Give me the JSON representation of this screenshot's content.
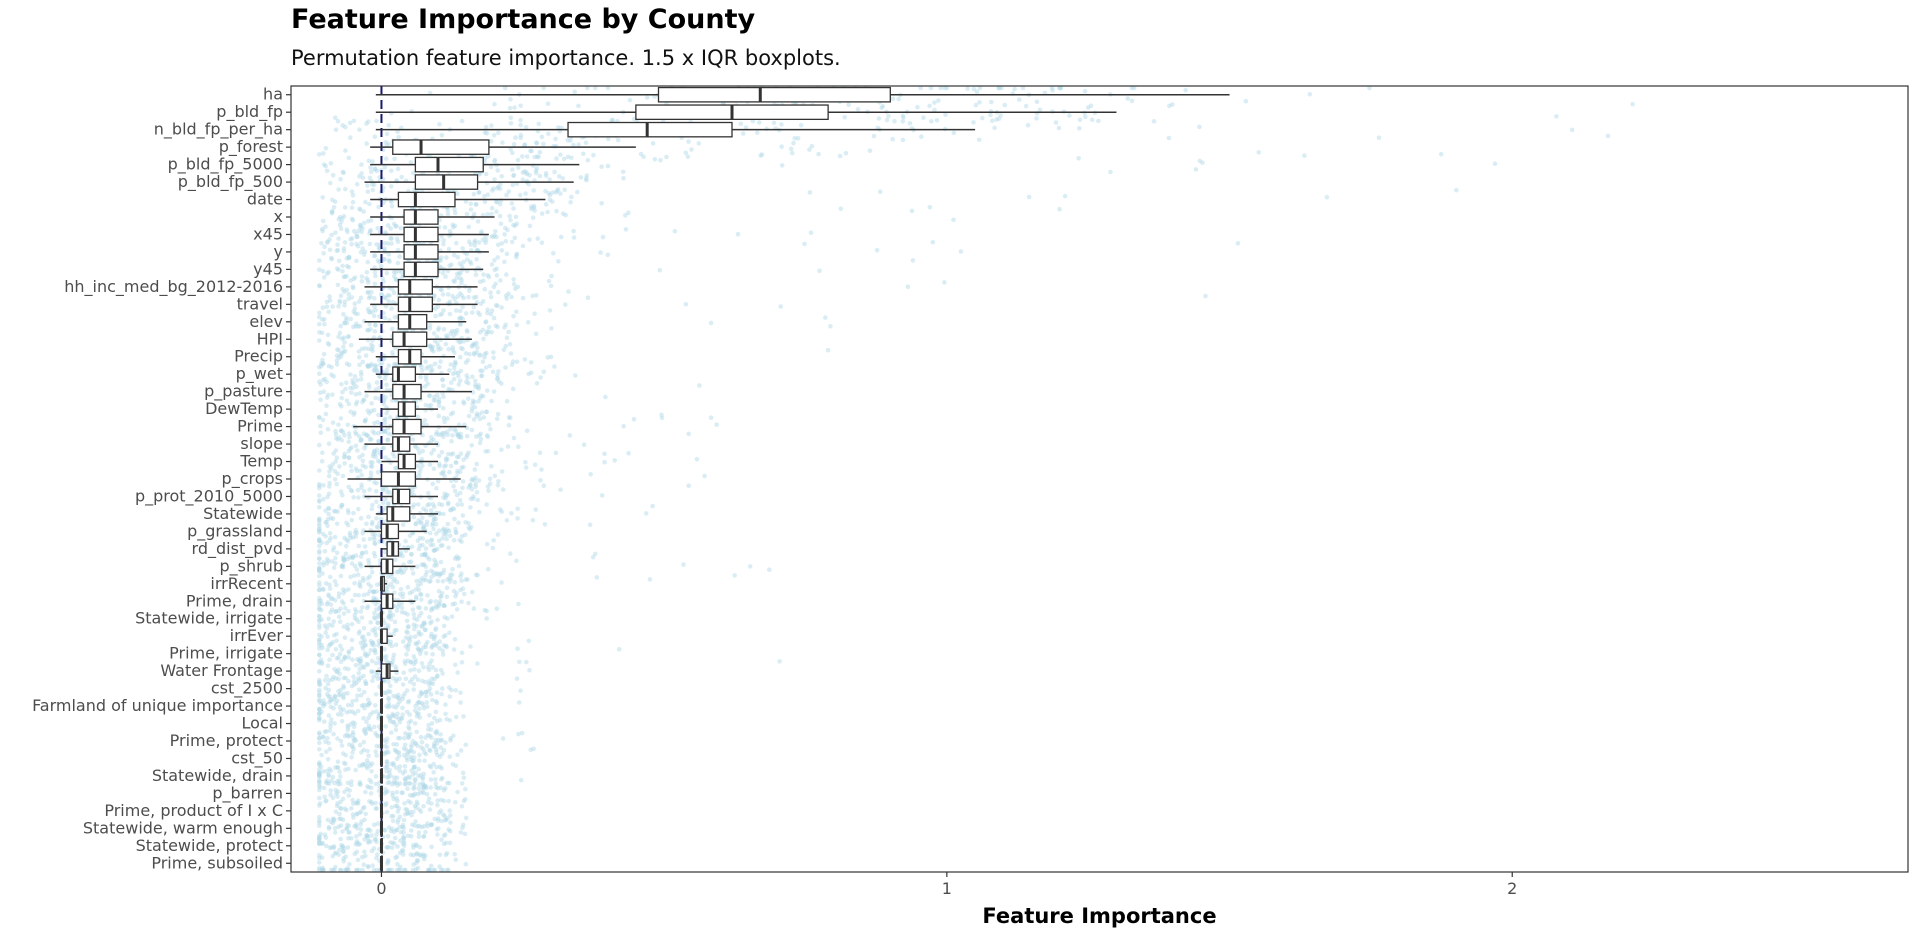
{
  "chart_data": {
    "type": "boxplot",
    "title": "Feature Importance by County",
    "subtitle": "Permutation feature importance. 1.5 x IQR boxplots.",
    "xlabel": "Feature Importance",
    "ylabel": "",
    "xlim": [
      -0.16,
      2.7
    ],
    "xticks": [
      0,
      1,
      2
    ],
    "reference_line": 0,
    "grid": false,
    "point_color": "#add8e6",
    "box_fill": "#ffffff",
    "reference_line_color": "#191970",
    "features": [
      {
        "name": "ha",
        "lower": -0.01,
        "q1": 0.49,
        "median": 0.67,
        "q3": 0.9,
        "upper": 1.5,
        "max": 2.6
      },
      {
        "name": "p_bld_fp",
        "lower": -0.01,
        "q1": 0.45,
        "median": 0.62,
        "q3": 0.79,
        "upper": 1.3,
        "max": 2.2
      },
      {
        "name": "n_bld_fp_per_ha",
        "lower": -0.01,
        "q1": 0.33,
        "median": 0.47,
        "q3": 0.62,
        "upper": 1.05,
        "max": 1.9
      },
      {
        "name": "p_forest",
        "lower": -0.02,
        "q1": 0.02,
        "median": 0.07,
        "q3": 0.19,
        "upper": 0.45,
        "max": 1.5
      },
      {
        "name": "p_bld_fp_5000",
        "lower": -0.02,
        "q1": 0.06,
        "median": 0.1,
        "q3": 0.18,
        "upper": 0.35,
        "max": 2.1
      },
      {
        "name": "p_bld_fp_500",
        "lower": -0.03,
        "q1": 0.06,
        "median": 0.11,
        "q3": 0.17,
        "upper": 0.34,
        "max": 2.1
      },
      {
        "name": "date",
        "lower": -0.02,
        "q1": 0.03,
        "median": 0.06,
        "q3": 0.13,
        "upper": 0.29,
        "max": 1.3
      },
      {
        "name": "x",
        "lower": -0.02,
        "q1": 0.04,
        "median": 0.06,
        "q3": 0.1,
        "upper": 0.2,
        "max": 1.3
      },
      {
        "name": "x45",
        "lower": -0.02,
        "q1": 0.04,
        "median": 0.06,
        "q3": 0.1,
        "upper": 0.19,
        "max": 1.6
      },
      {
        "name": "y",
        "lower": -0.02,
        "q1": 0.04,
        "median": 0.06,
        "q3": 0.1,
        "upper": 0.19,
        "max": 1.2
      },
      {
        "name": "y45",
        "lower": -0.02,
        "q1": 0.04,
        "median": 0.06,
        "q3": 0.1,
        "upper": 0.18,
        "max": 1.1
      },
      {
        "name": "hh_inc_med_bg_2012-2016",
        "lower": -0.03,
        "q1": 0.03,
        "median": 0.05,
        "q3": 0.09,
        "upper": 0.17,
        "max": 1.15
      },
      {
        "name": "travel",
        "lower": -0.02,
        "q1": 0.03,
        "median": 0.05,
        "q3": 0.09,
        "upper": 0.17,
        "max": 0.9
      },
      {
        "name": "elev",
        "lower": -0.03,
        "q1": 0.03,
        "median": 0.05,
        "q3": 0.08,
        "upper": 0.15,
        "max": 1.6
      },
      {
        "name": "HPI",
        "lower": -0.04,
        "q1": 0.02,
        "median": 0.04,
        "q3": 0.08,
        "upper": 0.16,
        "max": 1.3
      },
      {
        "name": "Precip",
        "lower": -0.01,
        "q1": 0.03,
        "median": 0.05,
        "q3": 0.07,
        "upper": 0.13,
        "max": 0.8
      },
      {
        "name": "p_wet",
        "lower": -0.01,
        "q1": 0.02,
        "median": 0.03,
        "q3": 0.06,
        "upper": 0.12,
        "max": 0.85
      },
      {
        "name": "p_pasture",
        "lower": -0.03,
        "q1": 0.02,
        "median": 0.04,
        "q3": 0.07,
        "upper": 0.16,
        "max": 0.6
      },
      {
        "name": "DewTemp",
        "lower": 0.0,
        "q1": 0.03,
        "median": 0.04,
        "q3": 0.06,
        "upper": 0.1,
        "max": 0.5
      },
      {
        "name": "Prime",
        "lower": -0.05,
        "q1": 0.02,
        "median": 0.04,
        "q3": 0.07,
        "upper": 0.15,
        "max": 0.55
      },
      {
        "name": "slope",
        "lower": -0.03,
        "q1": 0.02,
        "median": 0.03,
        "q3": 0.05,
        "upper": 0.1,
        "max": 0.6
      },
      {
        "name": "Temp",
        "lower": 0.0,
        "q1": 0.03,
        "median": 0.04,
        "q3": 0.06,
        "upper": 0.1,
        "max": 0.55
      },
      {
        "name": "p_crops",
        "lower": -0.06,
        "q1": 0.0,
        "median": 0.03,
        "q3": 0.06,
        "upper": 0.14,
        "max": 1.05
      },
      {
        "name": "p_prot_2010_5000",
        "lower": -0.03,
        "q1": 0.02,
        "median": 0.03,
        "q3": 0.05,
        "upper": 0.1,
        "max": 0.55
      },
      {
        "name": "Statewide",
        "lower": -0.01,
        "q1": 0.01,
        "median": 0.02,
        "q3": 0.05,
        "upper": 0.1,
        "max": 0.45
      },
      {
        "name": "p_grassland",
        "lower": -0.03,
        "q1": 0.0,
        "median": 0.01,
        "q3": 0.03,
        "upper": 0.08,
        "max": 0.45
      },
      {
        "name": "rd_dist_pvd",
        "lower": 0.0,
        "q1": 0.01,
        "median": 0.02,
        "q3": 0.03,
        "upper": 0.05,
        "max": 0.55
      },
      {
        "name": "p_shrub",
        "lower": -0.03,
        "q1": 0.0,
        "median": 0.01,
        "q3": 0.02,
        "upper": 0.06,
        "max": 0.75
      },
      {
        "name": "irrRecent",
        "lower": 0.0,
        "q1": 0.0,
        "median": 0.0,
        "q3": 0.005,
        "upper": 0.01,
        "max": 0.4
      },
      {
        "name": "Prime, drain",
        "lower": -0.03,
        "q1": 0.0,
        "median": 0.01,
        "q3": 0.02,
        "upper": 0.06,
        "max": 0.45
      },
      {
        "name": "Statewide, irrigate",
        "lower": 0.0,
        "q1": 0.0,
        "median": 0.0,
        "q3": 0.0,
        "upper": 0.0,
        "max": 0.3
      },
      {
        "name": "irrEver",
        "lower": 0.0,
        "q1": 0.0,
        "median": 0.0,
        "q3": 0.01,
        "upper": 0.02,
        "max": 0.8
      },
      {
        "name": "Prime, irrigate",
        "lower": 0.0,
        "q1": 0.0,
        "median": 0.0,
        "q3": 0.0,
        "upper": 0.0,
        "max": 0.3
      },
      {
        "name": "Water Frontage",
        "lower": -0.01,
        "q1": 0.0,
        "median": 0.01,
        "q3": 0.015,
        "upper": 0.03,
        "max": 0.52
      },
      {
        "name": "cst_2500",
        "lower": 0.0,
        "q1": 0.0,
        "median": 0.0,
        "q3": 0.0,
        "upper": 0.0,
        "max": 0.35
      },
      {
        "name": "Farmland of unique importance",
        "lower": 0.0,
        "q1": 0.0,
        "median": 0.0,
        "q3": 0.0,
        "upper": 0.0,
        "max": 0.3
      },
      {
        "name": "Local",
        "lower": 0.0,
        "q1": 0.0,
        "median": 0.0,
        "q3": 0.0,
        "upper": 0.0,
        "max": 0.3
      },
      {
        "name": "Prime, protect",
        "lower": 0.0,
        "q1": 0.0,
        "median": 0.0,
        "q3": 0.0,
        "upper": 0.0,
        "max": 0.3
      },
      {
        "name": "cst_50",
        "lower": 0.0,
        "q1": 0.0,
        "median": 0.0,
        "q3": 0.0,
        "upper": 0.0,
        "max": 0.3
      },
      {
        "name": "Statewide, drain",
        "lower": 0.0,
        "q1": 0.0,
        "median": 0.0,
        "q3": 0.0,
        "upper": 0.0,
        "max": 0.25
      },
      {
        "name": "p_barren",
        "lower": 0.0,
        "q1": 0.0,
        "median": 0.0,
        "q3": 0.0,
        "upper": 0.0,
        "max": 0.25
      },
      {
        "name": "Prime, product of I x C",
        "lower": 0.0,
        "q1": 0.0,
        "median": 0.0,
        "q3": 0.0,
        "upper": 0.0,
        "max": 0.15
      },
      {
        "name": "Statewide, warm enough",
        "lower": 0.0,
        "q1": 0.0,
        "median": 0.0,
        "q3": 0.0,
        "upper": 0.0,
        "max": 0.15
      },
      {
        "name": "Statewide, protect",
        "lower": 0.0,
        "q1": 0.0,
        "median": 0.0,
        "q3": 0.0,
        "upper": 0.0,
        "max": 0.15
      },
      {
        "name": "Prime, subsoiled",
        "lower": 0.0,
        "q1": 0.0,
        "median": 0.0,
        "q3": 0.0,
        "upper": 0.0,
        "max": 0.15
      }
    ]
  }
}
